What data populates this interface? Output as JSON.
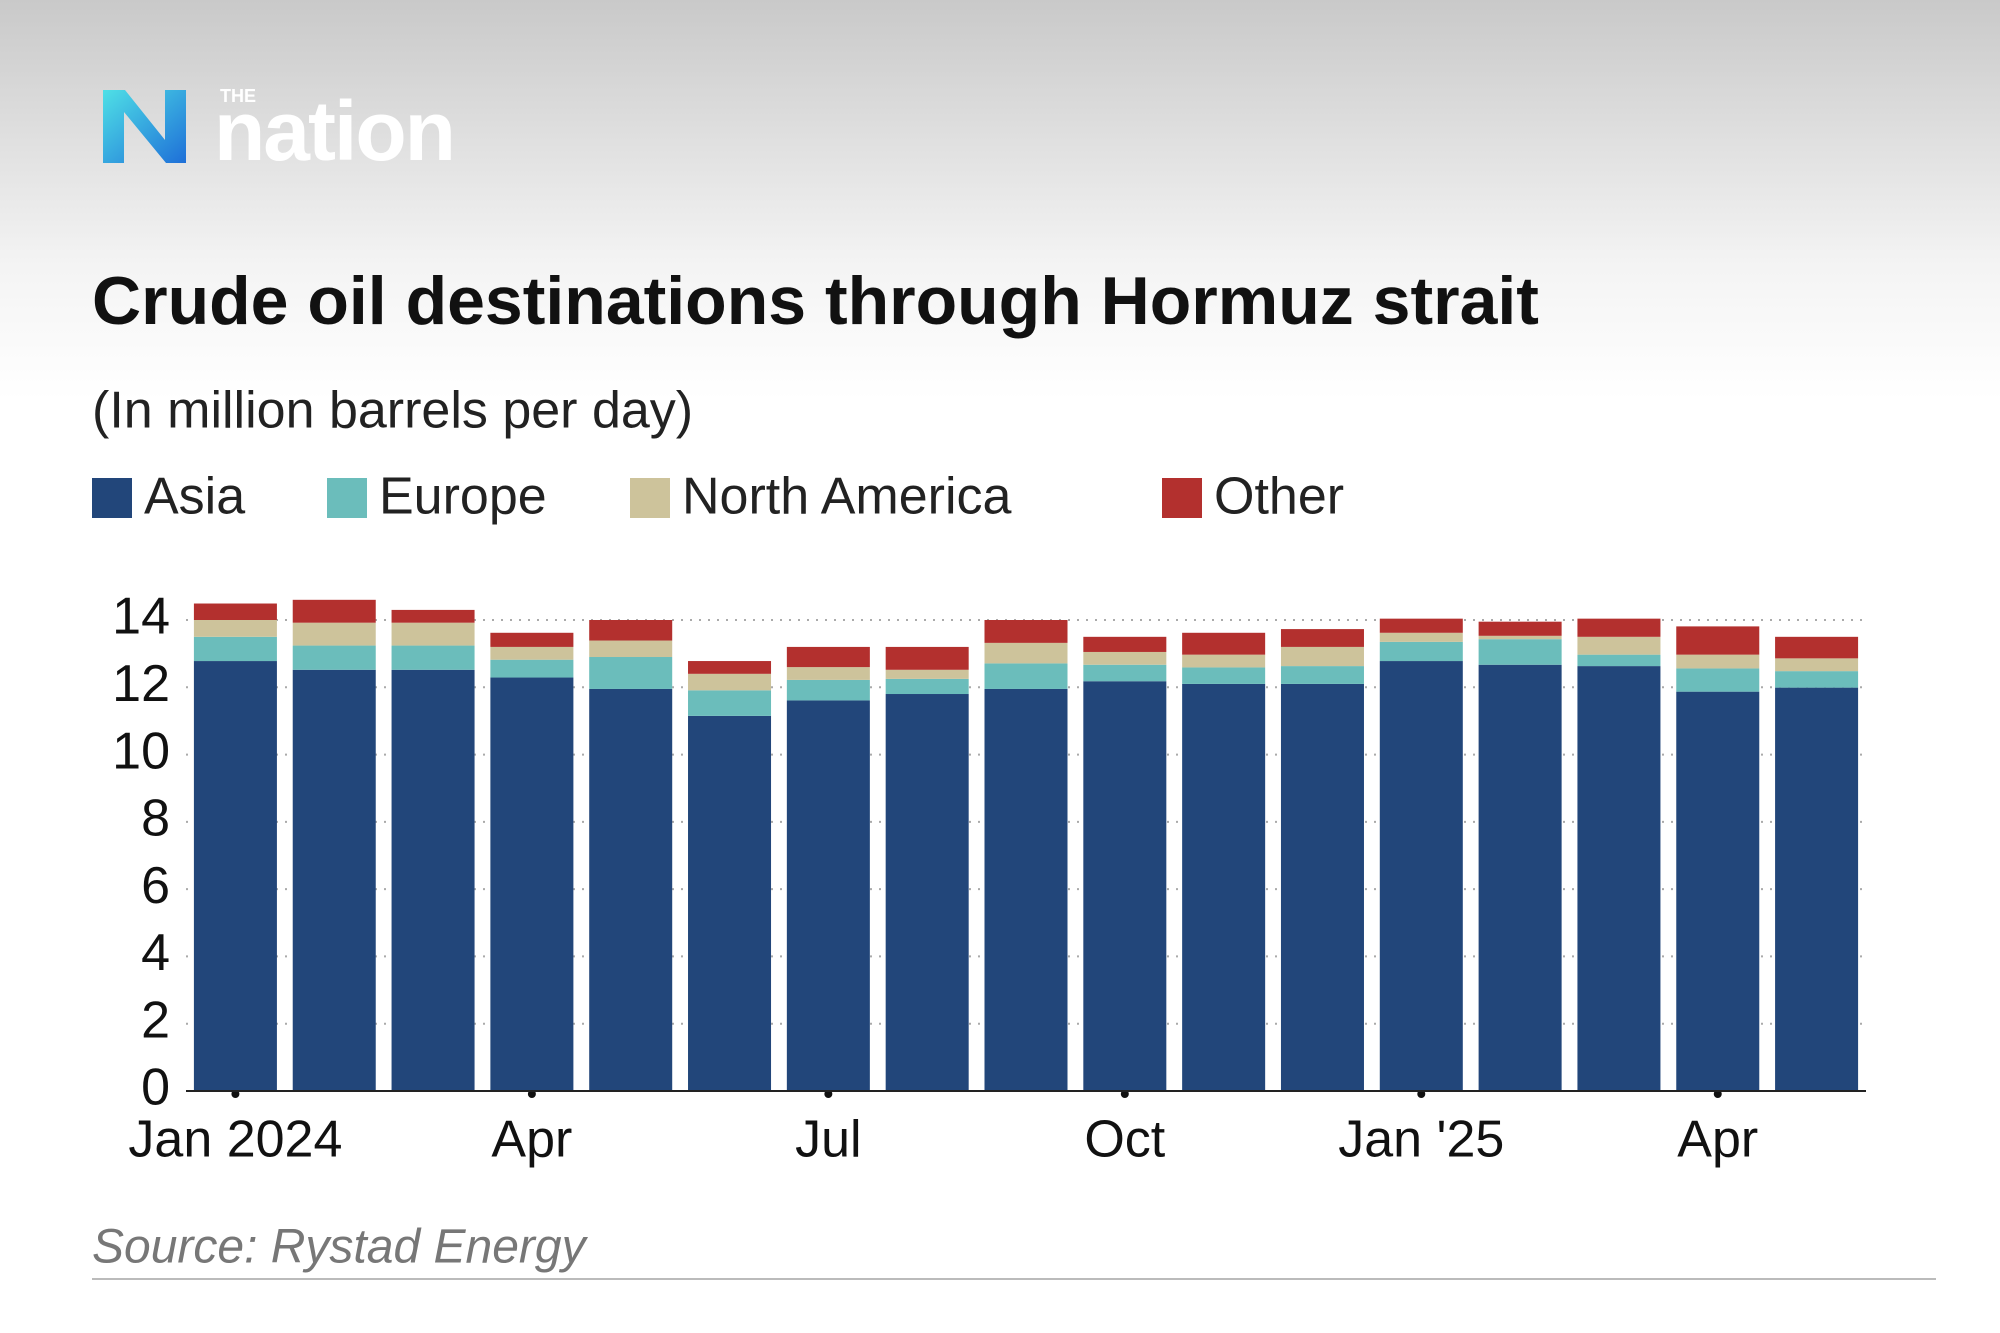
{
  "logo": {
    "small": "THE",
    "name": "nation"
  },
  "chart_data": {
    "type": "stacked-bar",
    "title": "Crude oil destinations through Hormuz strait",
    "subtitle": "(In million barrels per day)",
    "source": "Source: Rystad Energy",
    "categories": [
      "Jan 2024",
      null,
      null,
      "Apr",
      null,
      null,
      "Jul",
      null,
      null,
      "Oct",
      null,
      null,
      "Jan '25",
      null,
      null,
      "Apr",
      null
    ],
    "series": [
      {
        "name": "Asia",
        "color": "#22467a",
        "values": [
          12.78,
          12.52,
          12.52,
          12.29,
          11.95,
          11.15,
          11.61,
          11.8,
          11.95,
          12.18,
          12.1,
          12.1,
          12.78,
          12.67,
          12.63,
          11.87,
          11.99
        ]
      },
      {
        "name": "Europe",
        "color": "#6bbdbb",
        "values": [
          0.72,
          0.72,
          0.72,
          0.53,
          0.95,
          0.76,
          0.61,
          0.45,
          0.76,
          0.49,
          0.49,
          0.53,
          0.57,
          0.76,
          0.34,
          0.69,
          0.49
        ]
      },
      {
        "name": "North America",
        "color": "#cdc39b",
        "values": [
          0.5,
          0.68,
          0.68,
          0.38,
          0.49,
          0.49,
          0.38,
          0.27,
          0.61,
          0.38,
          0.38,
          0.57,
          0.27,
          0.1,
          0.53,
          0.41,
          0.38
        ]
      },
      {
        "name": "Other",
        "color": "#b3302e",
        "values": [
          0.49,
          0.68,
          0.38,
          0.42,
          0.61,
          0.38,
          0.6,
          0.68,
          0.68,
          0.45,
          0.65,
          0.53,
          0.42,
          0.42,
          0.54,
          0.84,
          0.64
        ]
      }
    ],
    "ylim": [
      0,
      15
    ],
    "yticks": [
      0,
      2,
      4,
      6,
      8,
      10,
      12,
      14
    ],
    "grid": true
  }
}
